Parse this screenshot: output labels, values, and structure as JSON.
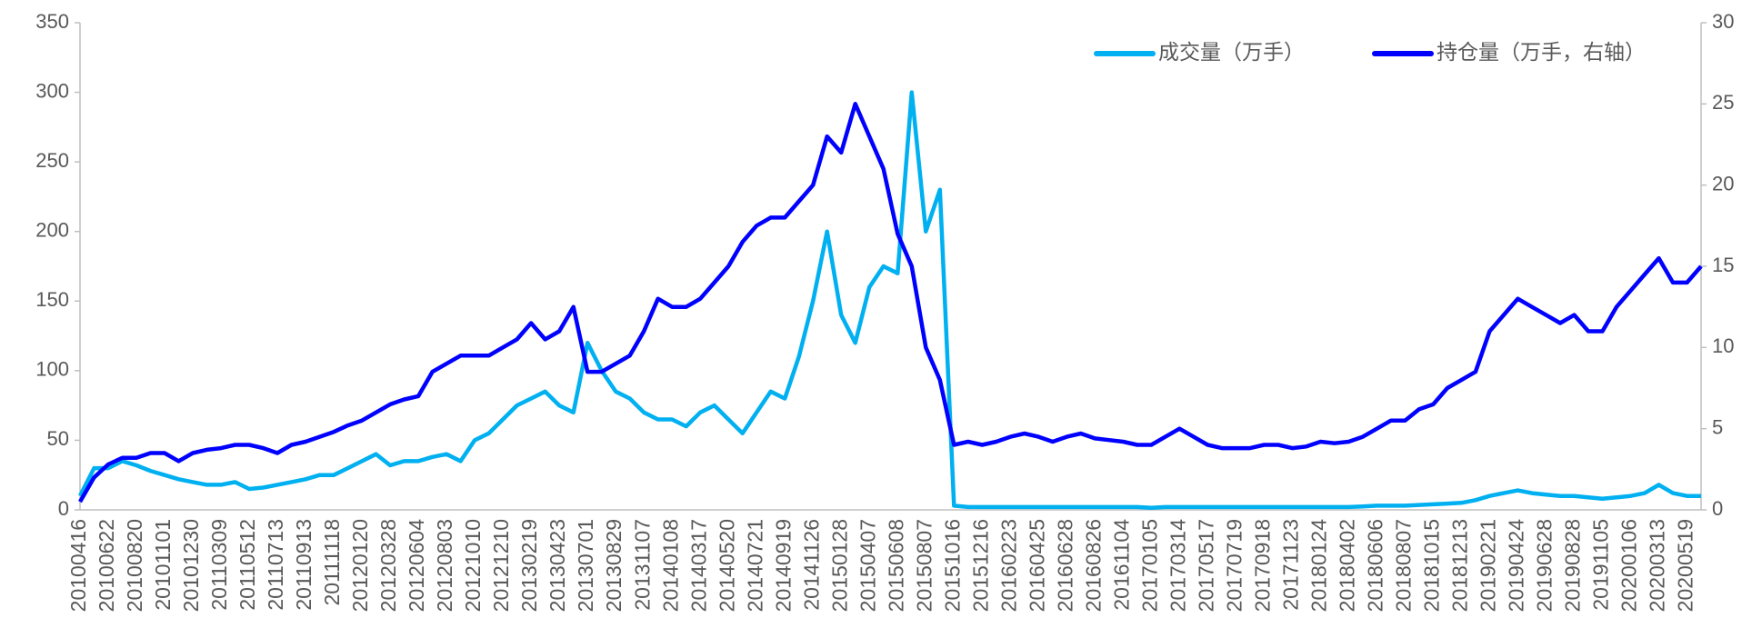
{
  "chart_data": {
    "type": "line",
    "categories": [
      "20100416",
      null,
      "20100622",
      null,
      "20100820",
      null,
      "20101101",
      null,
      "20101230",
      null,
      "20110309",
      null,
      "20110512",
      null,
      "20110713",
      null,
      "20110913",
      null,
      "20111118",
      null,
      "20120120",
      null,
      "20120328",
      null,
      "20120604",
      null,
      "20120803",
      null,
      "20121010",
      null,
      "20121210",
      null,
      "20130219",
      null,
      "20130423",
      null,
      "20130701",
      null,
      "20130829",
      null,
      "20131107",
      null,
      "20140108",
      null,
      "20140317",
      null,
      "20140520",
      null,
      "20140721",
      null,
      "20140919",
      null,
      "20141126",
      null,
      "20150128",
      null,
      "20150407",
      null,
      "20150608",
      null,
      "20150807",
      null,
      "20151016",
      null,
      "20151216",
      null,
      "20160223",
      null,
      "20160425",
      null,
      "20160628",
      null,
      "20160826",
      null,
      "20161104",
      null,
      "20170105",
      null,
      "20170314",
      null,
      "20170517",
      null,
      "20170719",
      null,
      "20170918",
      null,
      "20171123",
      null,
      "20180124",
      null,
      "20180402",
      null,
      "20180606",
      null,
      "20180807",
      null,
      "20181015",
      null,
      "20181213",
      null,
      "20190221",
      null,
      "20190424",
      null,
      "20190628",
      null,
      "20190828",
      null,
      "20191105",
      null,
      "20200106",
      null,
      "20200313",
      null,
      "20200519",
      null
    ],
    "series": [
      {
        "name": "成交量（万手）",
        "color": "#00b0f0",
        "values": [
          10,
          30,
          30,
          35,
          32,
          28,
          25,
          22,
          20,
          18,
          18,
          20,
          15,
          16,
          18,
          20,
          22,
          25,
          25,
          30,
          35,
          40,
          32,
          35,
          35,
          38,
          40,
          35,
          50,
          55,
          65,
          75,
          80,
          85,
          75,
          70,
          120,
          100,
          85,
          80,
          70,
          65,
          65,
          60,
          70,
          75,
          65,
          55,
          70,
          85,
          80,
          110,
          150,
          200,
          140,
          120,
          160,
          175,
          170,
          300,
          200,
          230,
          3,
          2,
          2,
          2,
          2,
          2,
          2,
          2,
          2,
          2,
          2,
          2,
          2,
          2,
          1.5,
          2,
          2,
          2,
          2,
          2,
          2,
          2,
          2,
          2,
          2,
          2,
          2,
          2,
          2,
          2.5,
          3,
          3,
          3,
          3.5,
          4,
          4.5,
          5,
          7,
          10,
          12,
          14,
          12,
          11,
          10,
          10,
          9,
          8,
          9,
          10,
          12,
          18,
          12,
          10,
          10
        ]
      },
      {
        "name": "持仓量（万手，右轴）",
        "color": "#0000ff",
        "axis": "y2",
        "values": [
          0.5,
          2,
          2.8,
          3.2,
          3.2,
          3.5,
          3.5,
          3,
          3.5,
          3.7,
          3.8,
          4,
          4,
          3.8,
          3.5,
          4,
          4.2,
          4.5,
          4.8,
          5.2,
          5.5,
          6,
          6.5,
          6.8,
          7,
          8.5,
          9,
          9.5,
          9.5,
          9.5,
          10,
          10.5,
          11.5,
          10.5,
          11,
          12.5,
          8.5,
          8.5,
          9,
          9.5,
          11,
          13,
          12.5,
          12.5,
          13,
          14,
          15,
          16.5,
          17.5,
          18,
          18,
          19,
          20,
          23,
          22,
          25,
          23,
          21,
          17,
          15,
          10,
          8,
          4,
          4.2,
          4,
          4.2,
          4.5,
          4.7,
          4.5,
          4.2,
          4.5,
          4.7,
          4.4,
          4.3,
          4.2,
          4,
          4,
          4.5,
          5,
          4.5,
          4,
          3.8,
          3.8,
          3.8,
          4,
          4,
          3.8,
          3.9,
          4.2,
          4.1,
          4.2,
          4.5,
          5,
          5.5,
          5.5,
          6.2,
          6.5,
          7.5,
          8,
          8.5,
          11,
          12,
          13,
          12.5,
          12,
          11.5,
          12,
          11,
          11,
          12.5,
          13.5,
          14.5,
          15.5,
          14,
          14,
          15
        ]
      }
    ],
    "ylim": [
      0,
      350
    ],
    "yticks": [
      0,
      50,
      100,
      150,
      200,
      250,
      300,
      350
    ],
    "y2lim": [
      0,
      30
    ],
    "y2ticks": [
      0,
      5,
      10,
      15,
      20,
      25,
      30
    ],
    "legend": "upper right",
    "grid": false
  }
}
